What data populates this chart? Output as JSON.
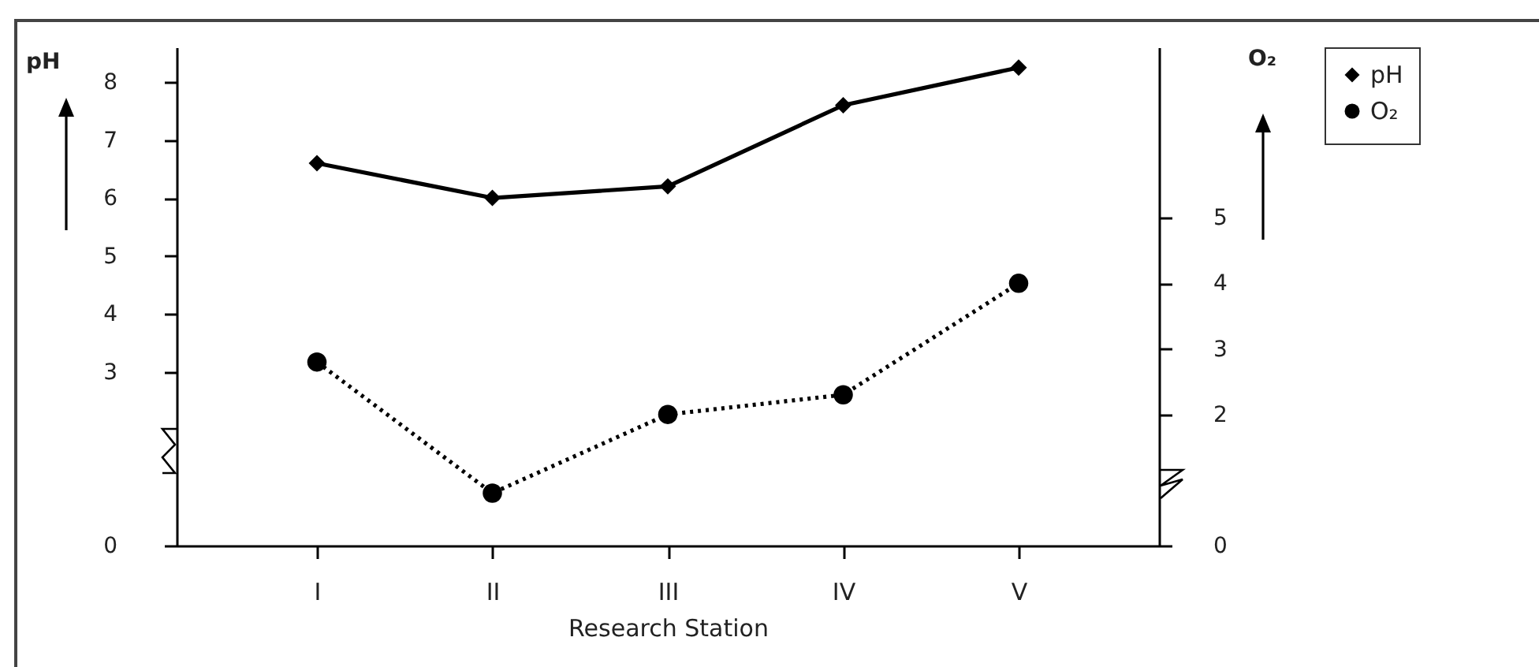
{
  "chart_data": {
    "type": "line",
    "xlabel": "Research Station",
    "ylabel": "pH",
    "y2label": "O₂",
    "categories": [
      "I",
      "II",
      "III",
      "IV",
      "V"
    ],
    "series": [
      {
        "name": "pH",
        "color": "#000000",
        "values": [
          6.6,
          6.0,
          6.2,
          7.6,
          8.25
        ],
        "marker": "diamond",
        "line_style": "solid"
      },
      {
        "name": "O₂",
        "color": "#000000",
        "values": [
          2.8,
          0.8,
          2.0,
          2.3,
          4.0
        ],
        "marker": "circle",
        "line_style": "dotted",
        "axis": "y2"
      }
    ],
    "ylim": [
      0,
      8.6
    ],
    "yticks": [
      0,
      3,
      4,
      5,
      6,
      7,
      8
    ],
    "y2lim": [
      0,
      7.6
    ],
    "y2ticks": [
      0,
      2,
      3,
      4,
      5
    ],
    "legend": "top right",
    "grid": false
  }
}
